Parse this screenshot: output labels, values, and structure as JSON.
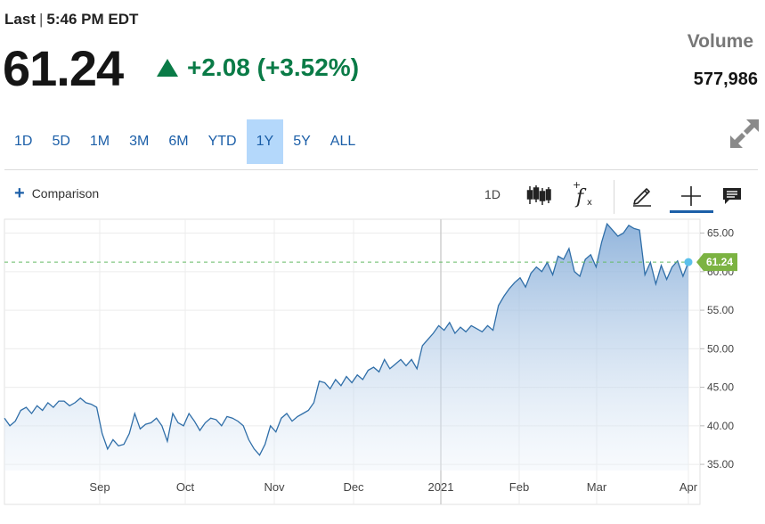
{
  "quote": {
    "last_label": "Last",
    "time": "5:46 PM EDT",
    "price": "61.24",
    "change": "+2.08 (+3.52%)",
    "volume_label": "Volume",
    "volume_value": "577,986"
  },
  "ranges": [
    "1D",
    "5D",
    "1M",
    "3M",
    "6M",
    "YTD",
    "1Y",
    "5Y",
    "ALL"
  ],
  "active_range": "1Y",
  "toolbar": {
    "comparison_label": "Comparison",
    "interval_label": "1D",
    "fx_label": "f",
    "fx_sub": "x"
  },
  "colors": {
    "accent": "#1c5fa8",
    "up": "#0a7b47",
    "active_range_bg": "#b4d8fb",
    "line": "#2f6ea8",
    "last_marker": "#5bc0eb",
    "last_badge": "#7cb342"
  },
  "icons": {
    "expand": "expand-arrows-icon",
    "candlestick": "candlestick-icon",
    "indicators": "fx-icon",
    "draw": "pencil-icon",
    "crosshair": "crosshair-icon",
    "comment": "comment-icon"
  },
  "chart_data": {
    "type": "area",
    "x_tick_labels": [
      "Sep",
      "Oct",
      "Nov",
      "Dec",
      "2021",
      "Feb",
      "Mar",
      "Apr"
    ],
    "y_ticks": [
      35,
      40,
      45,
      50,
      55,
      60,
      65
    ],
    "y_tick_labels": [
      "35.00",
      "40.00",
      "45.00",
      "50.00",
      "55.00",
      "60.00",
      "65.00"
    ],
    "ylim": [
      34.2,
      66.8
    ],
    "last_value": 61.24,
    "last_label": "61.24",
    "grid": true,
    "values": [
      41.0,
      40.0,
      40.6,
      42.0,
      42.4,
      41.6,
      42.6,
      42.0,
      43.0,
      42.4,
      43.2,
      43.2,
      42.6,
      43.0,
      43.6,
      43.0,
      42.8,
      42.4,
      39.0,
      37.0,
      38.2,
      37.4,
      37.6,
      39.0,
      41.6,
      39.6,
      40.2,
      40.4,
      41.0,
      40.0,
      38.0,
      41.6,
      40.4,
      40.0,
      41.6,
      40.6,
      39.4,
      40.4,
      41.0,
      40.8,
      40.0,
      41.2,
      41.0,
      40.6,
      40.0,
      38.2,
      37.0,
      36.2,
      37.6,
      40.0,
      39.2,
      41.0,
      41.6,
      40.6,
      41.2,
      41.6,
      42.0,
      43.0,
      45.8,
      45.6,
      44.8,
      46.0,
      45.2,
      46.4,
      45.6,
      46.6,
      46.0,
      47.2,
      47.6,
      47.0,
      48.6,
      47.4,
      48.0,
      48.6,
      47.8,
      48.6,
      47.4,
      50.4,
      51.2,
      52.0,
      53.0,
      52.4,
      53.4,
      52.0,
      52.8,
      52.2,
      53.0,
      52.6,
      52.2,
      53.0,
      52.4,
      55.6,
      56.8,
      57.8,
      58.6,
      59.2,
      58.0,
      59.8,
      60.6,
      60.0,
      61.2,
      59.6,
      62.0,
      61.6,
      63.0,
      60.0,
      59.4,
      61.6,
      62.2,
      60.6,
      63.8,
      66.2,
      65.4,
      64.6,
      65.0,
      66.0,
      65.6,
      65.4,
      59.6,
      61.2,
      58.4,
      60.8,
      59.0,
      60.6,
      61.4,
      59.4,
      61.24
    ]
  }
}
